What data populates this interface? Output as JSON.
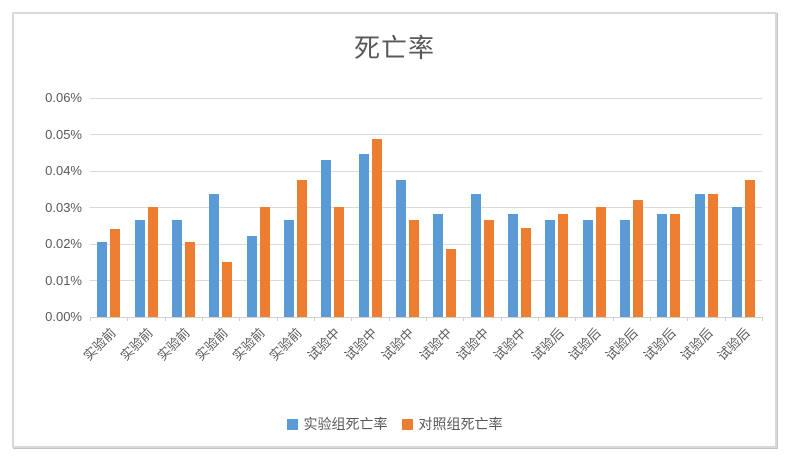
{
  "chart_data": {
    "type": "bar",
    "title": "死亡率",
    "categories": [
      "实验前",
      "实验前",
      "实验前",
      "实验前",
      "实验前",
      "实验前",
      "试验中",
      "试验中",
      "试验中",
      "试验中",
      "试验中",
      "试验中",
      "试验后",
      "试验后",
      "试验后",
      "试验后",
      "试验后",
      "试验后"
    ],
    "series": [
      {
        "name": "实验组死亡率",
        "color": "#5B9BD5",
        "values": [
          0.0205,
          0.0265,
          0.0265,
          0.0337,
          0.0222,
          0.0265,
          0.043,
          0.0447,
          0.0375,
          0.0282,
          0.0337,
          0.0282,
          0.0265,
          0.0265,
          0.0265,
          0.0282,
          0.0337,
          0.0301
        ]
      },
      {
        "name": "对照组死亡率",
        "color": "#ED7D31",
        "values": [
          0.024,
          0.0301,
          0.0205,
          0.015,
          0.0301,
          0.0376,
          0.0301,
          0.0487,
          0.0265,
          0.0186,
          0.0265,
          0.0245,
          0.0282,
          0.0301,
          0.0321,
          0.0282,
          0.0337,
          0.0376
        ]
      }
    ],
    "value_unit": "%",
    "ylim": [
      0,
      0.06
    ],
    "ytick_step": 0.01,
    "ytick_labels": [
      "0.00%",
      "0.01%",
      "0.02%",
      "0.03%",
      "0.04%",
      "0.05%",
      "0.06%"
    ],
    "grid": true,
    "legend_position": "bottom"
  },
  "colors": {
    "series_experimental": "#5B9BD5",
    "series_control": "#ED7D31",
    "gridline": "#D9D9D9",
    "axis_text": "#595959",
    "title_text": "#595959",
    "frame_border": "#D9D9D9",
    "background": "#FFFFFF"
  }
}
